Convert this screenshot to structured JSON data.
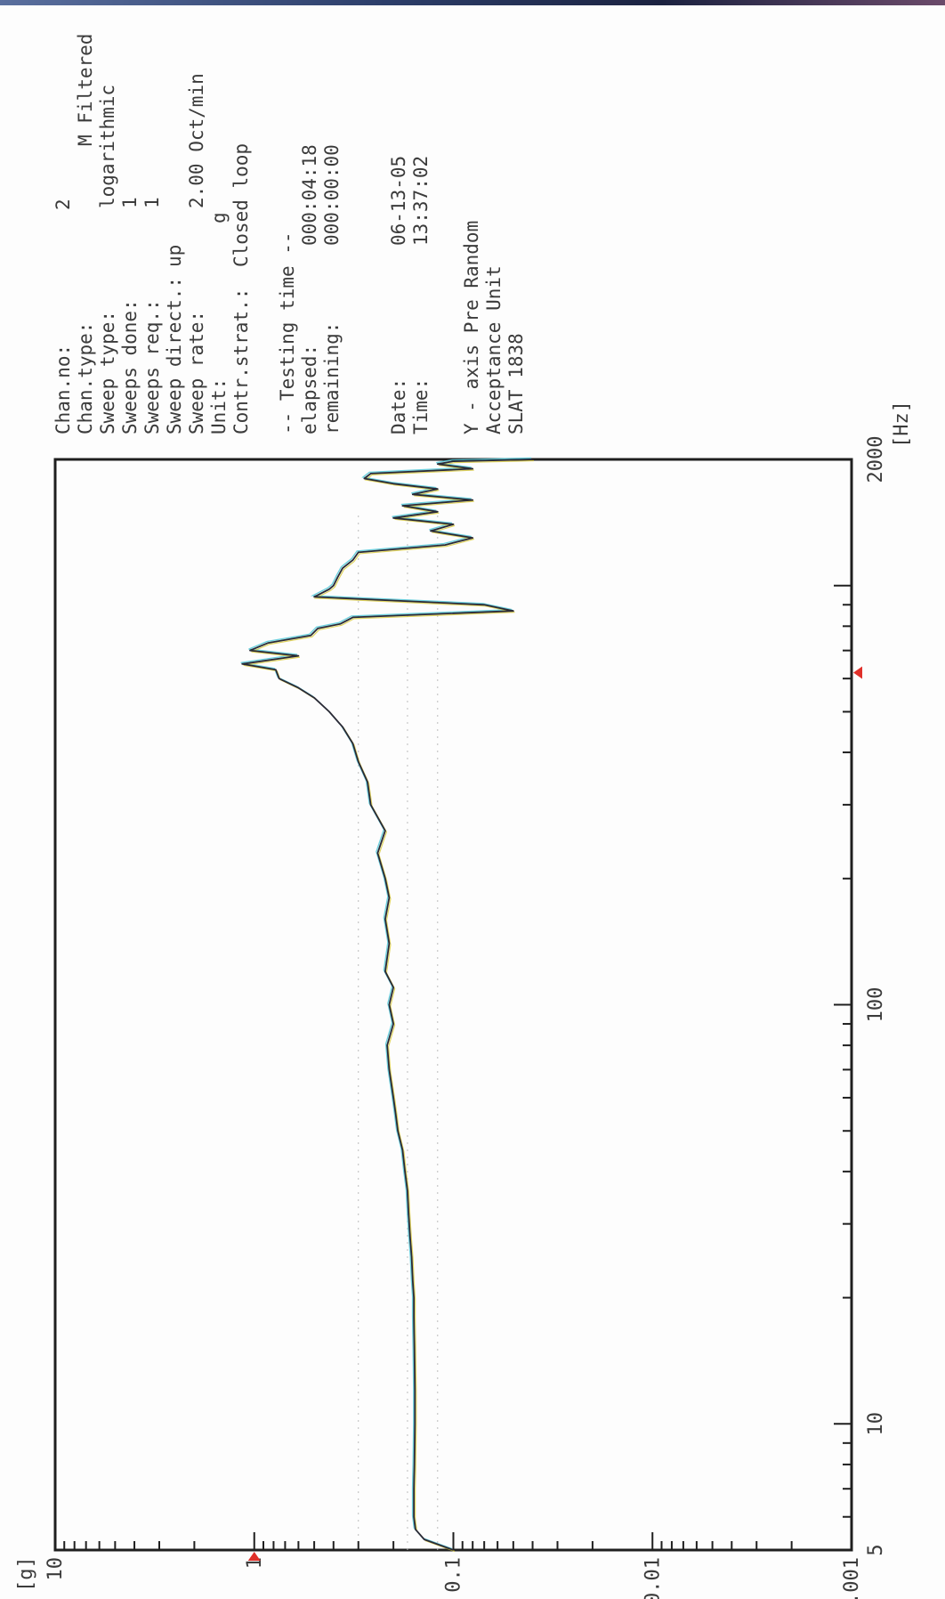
{
  "chart_data": {
    "type": "line",
    "orientation": "rotated-90-ccw",
    "x_scale": "log",
    "y_scale": "log",
    "xlim": [
      5,
      2000
    ],
    "ylim": [
      0.001,
      10
    ],
    "xlabel": "[Hz]",
    "ylabel": "[g]",
    "x_ticks": [
      "5",
      "10",
      "100",
      "2000"
    ],
    "y_ticks": [
      "0.001",
      "0.01",
      "0.1",
      "1",
      "10"
    ],
    "grid": false,
    "alarm_markers": [
      {
        "axis": "y",
        "value": 1
      },
      {
        "axis": "x",
        "value": 620
      }
    ],
    "series": [
      {
        "color": "#2a2a36",
        "x": [
          5,
          5.3,
          5.6,
          6,
          7,
          8,
          10,
          12,
          15,
          18,
          20,
          22,
          25,
          28,
          32,
          36,
          40,
          45,
          50,
          55,
          60,
          70,
          80,
          90,
          100,
          110,
          120,
          140,
          160,
          180,
          200,
          230,
          260,
          300,
          340,
          380,
          420,
          460,
          500,
          540,
          570,
          600,
          630,
          650,
          680,
          700,
          730,
          760,
          790,
          810,
          840,
          870,
          900,
          940,
          980,
          1000,
          1050,
          1100,
          1150,
          1200,
          1250,
          1300,
          1350,
          1400,
          1450,
          1500,
          1550,
          1600,
          1650,
          1700,
          1750,
          1800,
          1850,
          1900,
          1950,
          1980,
          1990,
          2000
        ],
        "y": [
          0.1,
          0.14,
          0.155,
          0.158,
          0.158,
          0.157,
          0.156,
          0.156,
          0.157,
          0.158,
          0.158,
          0.16,
          0.162,
          0.165,
          0.168,
          0.17,
          0.175,
          0.18,
          0.19,
          0.195,
          0.2,
          0.21,
          0.215,
          0.2,
          0.21,
          0.2,
          0.22,
          0.21,
          0.22,
          0.21,
          0.22,
          0.24,
          0.22,
          0.26,
          0.27,
          0.3,
          0.32,
          0.36,
          0.42,
          0.5,
          0.6,
          0.75,
          0.78,
          1.15,
          0.6,
          1.05,
          0.85,
          0.52,
          0.48,
          0.37,
          0.32,
          0.05,
          0.07,
          0.5,
          0.42,
          0.4,
          0.38,
          0.36,
          0.32,
          0.3,
          0.11,
          0.08,
          0.13,
          0.1,
          0.2,
          0.12,
          0.18,
          0.08,
          0.16,
          0.12,
          0.2,
          0.28,
          0.26,
          0.08,
          0.12,
          0.1,
          0.06,
          0.04
        ]
      }
    ]
  },
  "info": {
    "chan_no_label": "Chan.no:",
    "chan_no_value": "2",
    "chan_type_label": "Chan.type:",
    "chan_type_value": "M Filtered",
    "sweep_type_label": "Sweep type:",
    "sweep_type_value": "logarithmic",
    "sweeps_done_label": "Sweeps done:",
    "sweeps_done_value": "1",
    "sweeps_req_label": "Sweeps req.:",
    "sweeps_req_value": "1",
    "sweep_direct_label": "Sweep direct.:",
    "sweep_direct_value": "up",
    "sweep_rate_label": "Sweep rate:",
    "sweep_rate_value": "2.00 Oct/min",
    "unit_label": "Unit:",
    "unit_value": "g",
    "contr_strat_label": "Contr.strat.:",
    "contr_strat_value": "Closed loop",
    "testing_time_header": "-- Testing time --",
    "elapsed_label": "elapsed:",
    "elapsed_value": "000:04:18",
    "remaining_label": "remaining:",
    "remaining_value": "000:00:00",
    "date_label": "Date:",
    "date_value": "06-13-05",
    "time_label": "Time:",
    "time_value": "13:37:02",
    "axis_line": "Y - axis   Pre Random",
    "acceptance_line": "Acceptance Unit",
    "slat_line": "SLAT 1838"
  },
  "colors": {
    "ink": "#3b3b3b",
    "frame": "#1f1f1f",
    "trace": "#2a2a36",
    "alarm": "#e0302a",
    "accent_cyan": "#55c8d8",
    "accent_yellow": "#d8c838"
  }
}
